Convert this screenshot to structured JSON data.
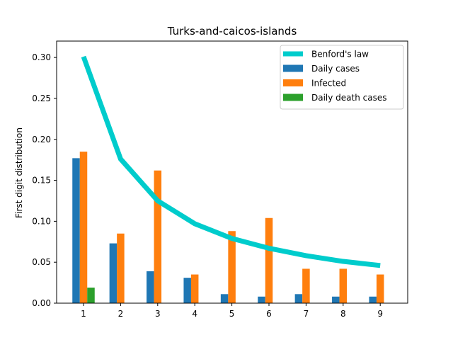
{
  "chart_data": {
    "type": "bar",
    "title": "Turks-and-caicos-islands",
    "xlabel": "",
    "ylabel": "First digit distribution",
    "categories": [
      "1",
      "2",
      "3",
      "4",
      "5",
      "6",
      "7",
      "8",
      "9"
    ],
    "ylim": [
      0,
      0.32
    ],
    "yticks": [
      "0.00",
      "0.05",
      "0.10",
      "0.15",
      "0.20",
      "0.25",
      "0.30"
    ],
    "grid": false,
    "legend_position": "top-right",
    "line_series": {
      "name": "Benford's law",
      "color": "#00cccc",
      "values": [
        0.301,
        0.176,
        0.125,
        0.097,
        0.079,
        0.067,
        0.058,
        0.051,
        0.046
      ]
    },
    "series": [
      {
        "name": "Daily cases",
        "color": "#1f77b4",
        "values": [
          0.177,
          0.073,
          0.039,
          0.031,
          0.011,
          0.008,
          0.011,
          0.008,
          0.008
        ]
      },
      {
        "name": "Infected",
        "color": "#ff7f0e",
        "values": [
          0.185,
          0.085,
          0.162,
          0.035,
          0.088,
          0.104,
          0.042,
          0.042,
          0.035
        ]
      },
      {
        "name": "Daily death cases",
        "color": "#2ca02c",
        "values": [
          0.019,
          0,
          0,
          0,
          0,
          0,
          0,
          0,
          0
        ]
      }
    ]
  }
}
